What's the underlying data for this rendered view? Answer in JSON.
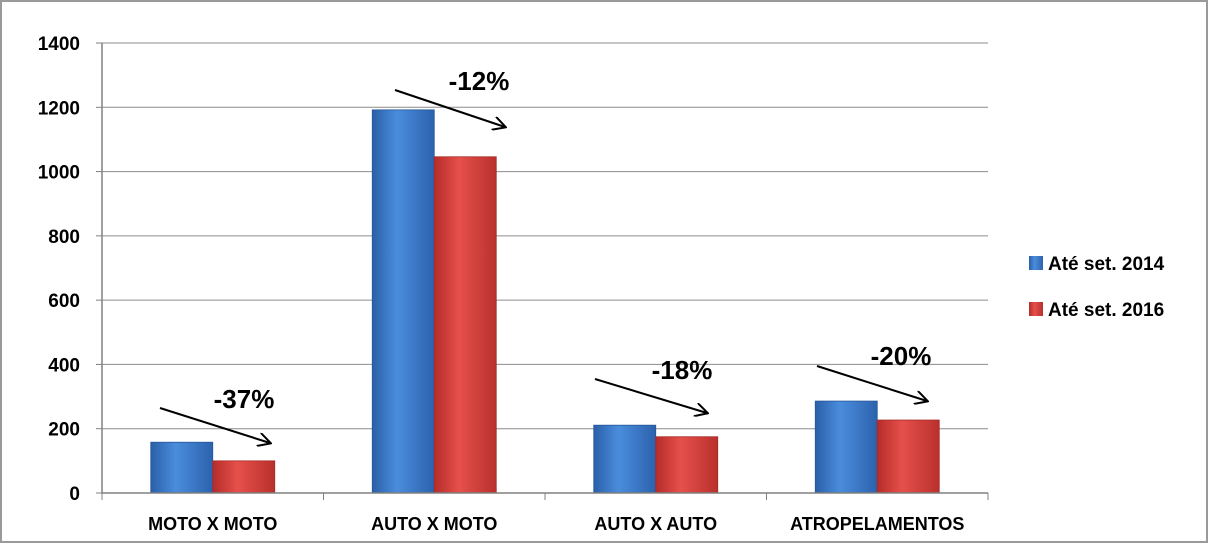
{
  "chart_data": {
    "type": "bar",
    "categories": [
      "MOTO X MOTO",
      "AUTO X MOTO",
      "AUTO X AUTO",
      "ATROPELAMENTOS"
    ],
    "series": [
      {
        "name": "Até set. 2014",
        "values": [
          158,
          1192,
          211,
          286
        ]
      },
      {
        "name": "Até set. 2016",
        "values": [
          100,
          1046,
          175,
          227
        ]
      }
    ],
    "yticks": [
      "0",
      "200",
      "400",
      "600",
      "800",
      "1000",
      "1200",
      "1400"
    ],
    "ylim": [
      0,
      1400
    ],
    "grid": true,
    "legend_position": "right",
    "annotations": [
      "-37%",
      "-12%",
      "-18%",
      "-20%"
    ],
    "title": "",
    "xlabel": "",
    "ylabel": ""
  },
  "colors": {
    "series_2014": "#3b78c8",
    "series_2016": "#d9403c",
    "grid": "#8c8c8c"
  }
}
